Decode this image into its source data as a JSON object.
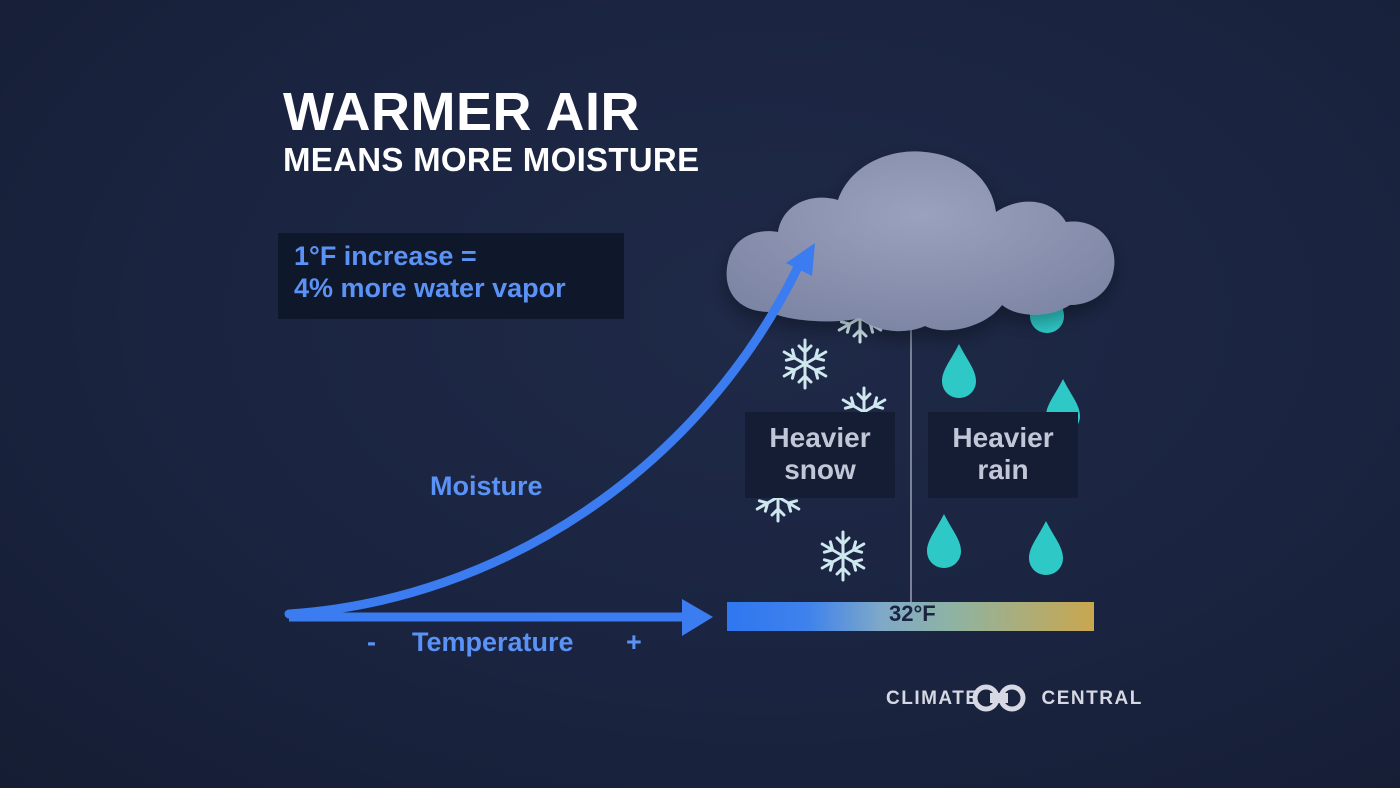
{
  "header": {
    "title": "WARMER AIR",
    "subtitle": "MEANS MORE MOISTURE"
  },
  "fact": {
    "line1": "1°F increase =",
    "line2": "4% more water vapor"
  },
  "axes": {
    "moisture_label": "Moisture",
    "temperature_label": "Temperature",
    "minus": "-",
    "plus": "+"
  },
  "precipitation": {
    "snow": [
      "Heavier",
      "snow"
    ],
    "rain": [
      "Heavier",
      "rain"
    ],
    "threshold": "32°F"
  },
  "logo": {
    "left": "CLIMATE",
    "right": "CENTRAL"
  },
  "colors": {
    "accent_blue": "#3b7cf0",
    "text_blue": "#5b92f6",
    "rain_drop": "#2ec9c7",
    "snowflake": "#cfe8ef",
    "cloud": "#8f96b3"
  },
  "icons": [
    "cloud-icon",
    "snowflake-icon",
    "raindrop-icon",
    "logo-rings-icon"
  ]
}
